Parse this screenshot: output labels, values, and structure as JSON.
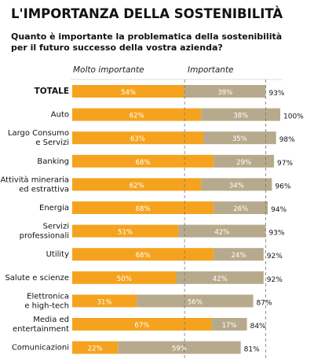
{
  "chart_data": {
    "type": "stacked-bar-horizontal",
    "title": "L'IMPORTANZA DELLA SOSTENIBILITÀ",
    "subtitle": "Quanto è importante la problematica della sostenibilità\nper il futuro successo della vostra azienda?",
    "categories": [
      "TOTALE",
      "Auto",
      "Largo Consumo\ne Servizi",
      "Banking",
      "Attività mineraria\ned estrattiva",
      "Energia",
      "Servizi\nprofessionali",
      "Utility",
      "Salute e scienze",
      "Elettronica\ne high-tech",
      "Media ed\nentertainment",
      "Comunicazioni"
    ],
    "series": [
      {
        "name": "Molto importante",
        "color": "#f5a31f",
        "values": [
          54,
          62,
          63,
          68,
          62,
          68,
          51,
          68,
          50,
          31,
          67,
          22
        ],
        "value_labels": [
          "54%",
          "62%",
          "63%",
          "68%",
          "62%",
          "68%",
          "51%",
          "68%",
          "50%",
          "31%",
          "67%",
          "22%"
        ]
      },
      {
        "name": "Importante",
        "color": "#b7aa8c",
        "values": [
          39,
          38,
          35,
          29,
          34,
          26,
          42,
          24,
          42,
          56,
          17,
          59
        ],
        "value_labels": [
          "39%",
          "38%",
          "35%",
          "29%",
          "34%",
          "26%",
          "42%",
          "24%",
          "42%",
          "56%",
          "17%",
          "59%"
        ]
      }
    ],
    "totals": [
      93,
      100,
      98,
      97,
      96,
      94,
      93,
      92,
      92,
      87,
      84,
      81
    ],
    "total_labels": [
      "93%",
      "100%",
      "98%",
      "97%",
      "96%",
      "94%",
      "93%",
      "92%",
      "92%",
      "87%",
      "84%",
      "81%"
    ]
  }
}
